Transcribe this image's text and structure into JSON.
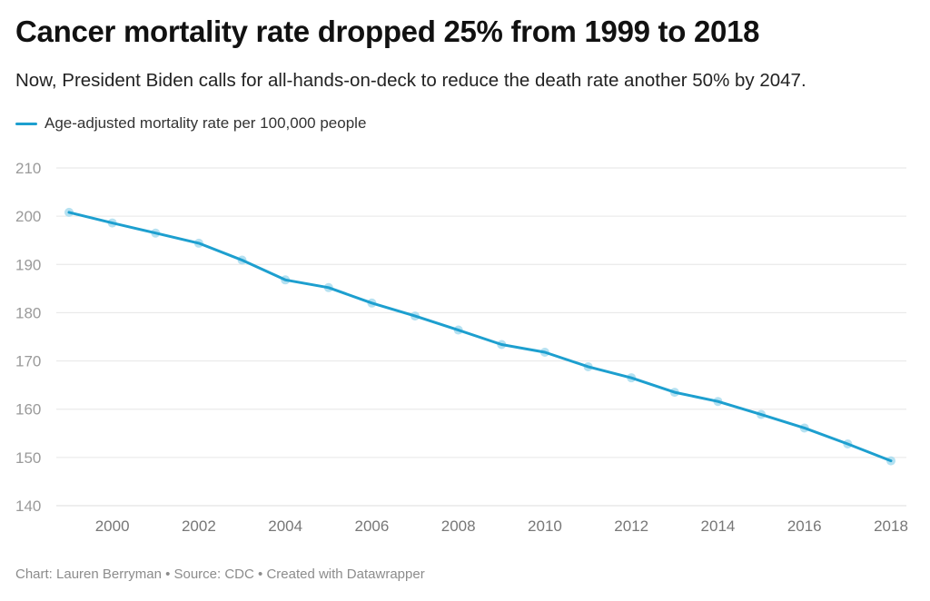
{
  "header": {
    "title": "Cancer mortality rate dropped 25% from 1999 to 2018",
    "subtitle": "Now, President Biden calls for all-hands-on-deck to reduce the death rate another 50% by 2047."
  },
  "legend": {
    "label": "Age-adjusted mortality rate per 100,000 people",
    "color": "#1d9fcf"
  },
  "footer": {
    "credit": "Chart: Lauren Berryman • Source: CDC • Created with Datawrapper"
  },
  "chart_data": {
    "type": "line",
    "title": "Cancer mortality rate dropped 25% from 1999 to 2018",
    "subtitle": "Now, President Biden calls for all-hands-on-deck to reduce the death rate another 50% by 2047.",
    "xlabel": "",
    "ylabel": "",
    "x": [
      1999,
      2000,
      2001,
      2002,
      2003,
      2004,
      2005,
      2006,
      2007,
      2008,
      2009,
      2010,
      2011,
      2012,
      2013,
      2014,
      2015,
      2016,
      2017,
      2018
    ],
    "series": [
      {
        "name": "Age-adjusted mortality rate per 100,000 people",
        "color": "#1d9fcf",
        "marker_color": "#a8dcef",
        "values": [
          200.8,
          198.6,
          196.5,
          194.4,
          190.9,
          186.8,
          185.2,
          182.0,
          179.3,
          176.4,
          173.4,
          171.8,
          168.8,
          166.5,
          163.5,
          161.6,
          158.9,
          156.1,
          152.8,
          149.3
        ]
      }
    ],
    "xlim": [
      1999,
      2018
    ],
    "ylim": [
      140,
      210
    ],
    "y_ticks": [
      140,
      150,
      160,
      170,
      180,
      190,
      200,
      210
    ],
    "x_ticks": [
      2000,
      2002,
      2004,
      2006,
      2008,
      2010,
      2012,
      2014,
      2016,
      2018
    ],
    "x_tick_labels": [
      "2000",
      "2002",
      "2004",
      "2006",
      "2008",
      "2010",
      "2012",
      "2014",
      "2016",
      "2018"
    ],
    "y_tick_labels": [
      "140",
      "150",
      "160",
      "170",
      "180",
      "190",
      "200",
      "210"
    ],
    "grid": "horizontal",
    "legend_position": "top-left"
  }
}
